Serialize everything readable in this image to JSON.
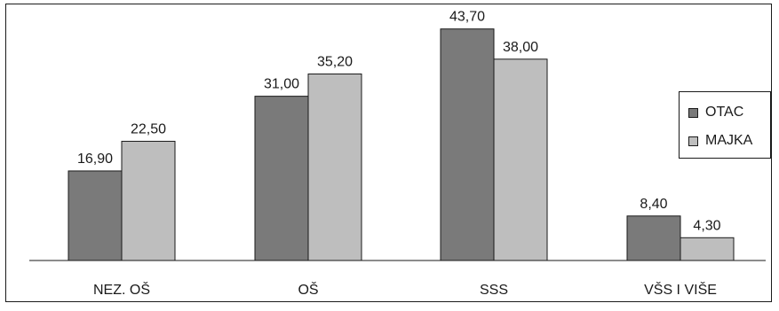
{
  "chart_data": {
    "type": "bar",
    "categories": [
      "NEZ. OŠ",
      "OŠ",
      "SSS",
      "VŠS I VIŠE"
    ],
    "series": [
      {
        "name": "OTAC",
        "values": [
          16.9,
          31.0,
          43.7,
          8.4
        ],
        "labels": [
          "16,90",
          "31,00",
          "43,70",
          "8,40"
        ],
        "color": "#7a7a7a"
      },
      {
        "name": "MAJKA",
        "values": [
          22.5,
          35.2,
          38.0,
          4.3
        ],
        "labels": [
          "22,50",
          "35,20",
          "38,00",
          "4,30"
        ],
        "color": "#bebebe"
      }
    ],
    "ylim": [
      0,
      45
    ],
    "grid": false,
    "legend_position": "right"
  }
}
